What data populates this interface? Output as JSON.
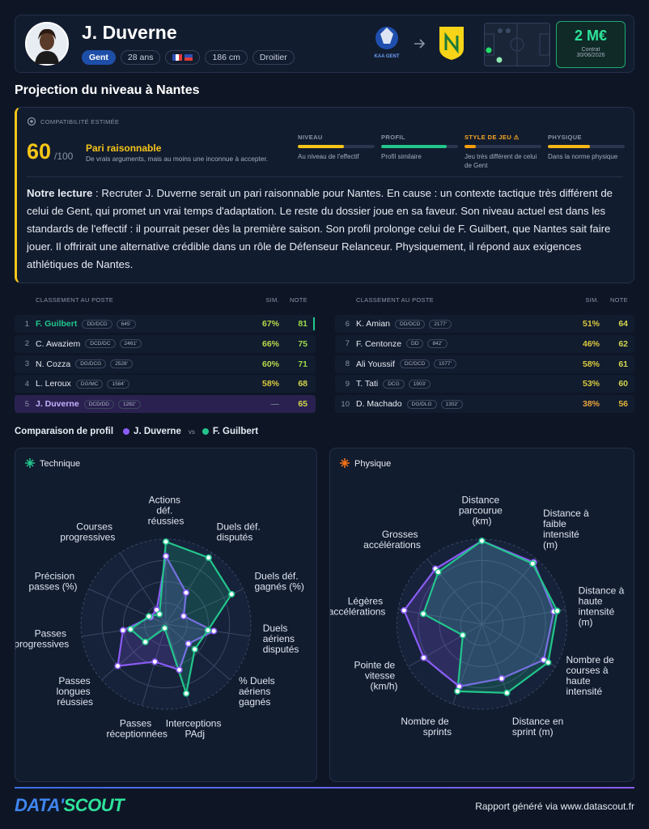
{
  "header": {
    "name": "J. Duverne",
    "club": "Gent",
    "age": "28 ans",
    "height": "186 cm",
    "foot": "Droitier",
    "from_logo": "KAA GENT",
    "value": "2 M€",
    "contract_label": "Contrat",
    "contract_date": "30/06/2026"
  },
  "section_title": "Projection du niveau à Nantes",
  "compatibility": {
    "label": "COMPATIBILITÉ ESTIMÉE",
    "score": 60,
    "score_max": "/100",
    "verdict": "Pari raisonnable",
    "verdict_text": "De vrais arguments, mais au moins une inconnue à accepter.",
    "criteria": [
      {
        "label": "NIVEAU",
        "value": 60,
        "color": "#f5c518",
        "label_color": "#8a94a8",
        "note": "Au niveau de l'effectif"
      },
      {
        "label": "PROFIL",
        "value": 85,
        "color": "#22c58b",
        "label_color": "#8a94a8",
        "note": "Profil similaire"
      },
      {
        "label": "STYLE DE JEU ⚠",
        "value": 15,
        "color": "#f59e0b",
        "label_color": "#f5a623",
        "note": "Jeu très différent de celui de Gent"
      },
      {
        "label": "PHYSIQUE",
        "value": 55,
        "color": "#f5b818",
        "label_color": "#8a94a8",
        "note": "Dans la norme physique"
      }
    ]
  },
  "reading": {
    "lead": "Notre lecture",
    "text": ": Recruter J. Duverne serait un pari raisonnable pour Nantes. En cause : un contexte tactique très différent de celui de Gent, qui promet un vrai temps d'adaptation. Le reste du dossier joue en sa faveur. Son niveau actuel est dans les standards de l'effectif : il pourrait peser dès la première saison. Son profil prolonge celui de F. Guilbert, que Nantes sait faire jouer. Il offrirait une alternative crédible dans un rôle de Défenseur Relanceur. Physiquement, il répond aux exigences athlétiques de Nantes."
  },
  "ranking": {
    "title": "CLASSEMENT AU POSTE",
    "sim_header": "SIM.",
    "note_header": "NOTE",
    "rows": [
      {
        "rank": 1,
        "name": "F. Guilbert",
        "pos": "DD/DCD",
        "minutes": "645'",
        "sim": "67%",
        "note": 81
      },
      {
        "rank": 2,
        "name": "C. Awaziem",
        "pos": "DCD/DC",
        "minutes": "2461'",
        "sim": "66%",
        "note": 75
      },
      {
        "rank": 3,
        "name": "N. Cozza",
        "pos": "DG/DCG",
        "minutes": "2528'",
        "sim": "60%",
        "note": 71
      },
      {
        "rank": 4,
        "name": "L. Leroux",
        "pos": "DG/MC",
        "minutes": "1584'",
        "sim": "58%",
        "note": 68
      },
      {
        "rank": 5,
        "name": "J. Duverne",
        "pos": "DCD/DD",
        "minutes": "1282'",
        "sim": "—",
        "note": 65
      },
      {
        "rank": 6,
        "name": "K. Amian",
        "pos": "DD/DCD",
        "minutes": "2177'",
        "sim": "51%",
        "note": 64
      },
      {
        "rank": 7,
        "name": "F. Centonze",
        "pos": "DD",
        "minutes": "842'",
        "sim": "46%",
        "note": 62
      },
      {
        "rank": 8,
        "name": "Ali Youssif",
        "pos": "DC/DCD",
        "minutes": "1077'",
        "sim": "58%",
        "note": 61
      },
      {
        "rank": 9,
        "name": "T. Tati",
        "pos": "DCG",
        "minutes": "1903'",
        "sim": "53%",
        "note": 60
      },
      {
        "rank": 10,
        "name": "D. Machado",
        "pos": "DG/DLG",
        "minutes": "1302'",
        "sim": "38%",
        "note": 56
      }
    ]
  },
  "comparison": {
    "title": "Comparaison de profil",
    "vs": "vs"
  },
  "chart_data": [
    {
      "type": "radar",
      "title": "Technique",
      "axes": [
        "Actions déf. réussies",
        "Duels déf. disputés",
        "Duels déf. gagnés (%)",
        "Duels aériens disputés",
        "% Duels aériens gagnés",
        "Interceptions PAdj",
        "Passes réceptionnées",
        "Passes longues réussies",
        "Passes progressives",
        "Précision passes (%)",
        "Courses progressives"
      ],
      "rlim": [
        0,
        100
      ],
      "rticks": [
        25,
        50,
        75,
        100
      ],
      "series": [
        {
          "name": "J. Duverne",
          "color": "#8b5cf6",
          "values": [
            80,
            44,
            23,
            57,
            35,
            56,
            46,
            75,
            51,
            20,
            20
          ]
        },
        {
          "name": "F. Guilbert",
          "color": "#22c58b",
          "values": [
            97,
            93,
            85,
            50,
            45,
            85,
            5,
            32,
            42,
            22,
            14
          ]
        }
      ]
    },
    {
      "type": "radar",
      "title": "Physique",
      "axes": [
        "Distance parcourue (km)",
        "Distance à faible intensité (m)",
        "Distance à haute intensité (m)",
        "Nombre de courses à haute intensité",
        "Distance en sprint (m)",
        "Nombre de sprints",
        "Pointe de vitesse (km/h)",
        "Légères accélérations",
        "Grosses accélérations"
      ],
      "rlim": [
        0,
        100
      ],
      "rticks": [
        25,
        50,
        75,
        100
      ],
      "series": [
        {
          "color": "#8b5cf6",
          "values": [
            98,
            95,
            86,
            84,
            68,
            78,
            79,
            93,
            85
          ]
        },
        {
          "color": "#22c58b",
          "values": [
            98,
            93,
            90,
            90,
            86,
            84,
            26,
            70,
            80
          ]
        }
      ]
    }
  ],
  "footer": {
    "logo": [
      "DATA'",
      "SCOUT"
    ],
    "text": "Rapport généré via www.datascout.fr"
  }
}
